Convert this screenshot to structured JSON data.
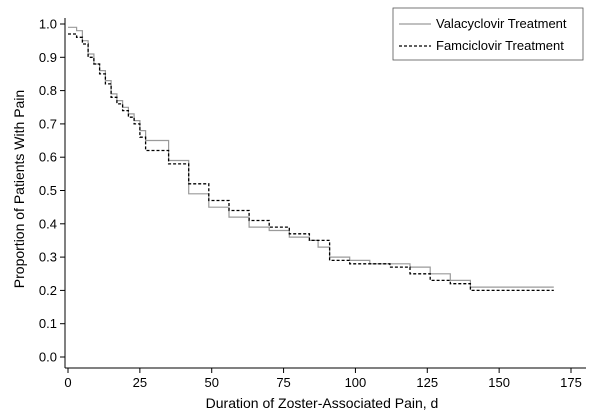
{
  "chart_data": {
    "type": "line",
    "title": "",
    "xlabel": "Duration of Zoster-Associated Pain, d",
    "ylabel": "Proportion of Patients With Pain",
    "xlim": [
      0,
      175
    ],
    "ylim": [
      0,
      1.0
    ],
    "x_ticks": [
      "0",
      "25",
      "50",
      "75",
      "100",
      "125",
      "150",
      "175"
    ],
    "y_ticks": [
      "0.0",
      "0.1",
      "0.2",
      "0.3",
      "0.4",
      "0.5",
      "0.6",
      "0.7",
      "0.8",
      "0.9",
      "1.0"
    ],
    "grid": false,
    "legend_position": "top-right",
    "series": [
      {
        "name": "Valacyclovir Treatment",
        "color": "#9a9a9a",
        "style": "solid",
        "step": true,
        "points": [
          [
            0,
            0.99
          ],
          [
            3,
            0.98
          ],
          [
            5,
            0.95
          ],
          [
            7,
            0.91
          ],
          [
            9,
            0.88
          ],
          [
            11,
            0.86
          ],
          [
            13,
            0.83
          ],
          [
            15,
            0.79
          ],
          [
            17,
            0.77
          ],
          [
            19,
            0.75
          ],
          [
            21,
            0.73
          ],
          [
            23,
            0.71
          ],
          [
            25,
            0.68
          ],
          [
            27,
            0.65
          ],
          [
            35,
            0.59
          ],
          [
            42,
            0.49
          ],
          [
            49,
            0.45
          ],
          [
            56,
            0.42
          ],
          [
            63,
            0.39
          ],
          [
            70,
            0.38
          ],
          [
            77,
            0.36
          ],
          [
            84,
            0.35
          ],
          [
            87,
            0.33
          ],
          [
            91,
            0.3
          ],
          [
            98,
            0.29
          ],
          [
            105,
            0.28
          ],
          [
            112,
            0.28
          ],
          [
            119,
            0.27
          ],
          [
            126,
            0.25
          ],
          [
            133,
            0.23
          ],
          [
            140,
            0.21
          ],
          [
            169,
            0.21
          ]
        ]
      },
      {
        "name": "Famciclovir Treatment",
        "color": "#000000",
        "style": "dashed",
        "step": true,
        "points": [
          [
            0,
            0.97
          ],
          [
            3,
            0.96
          ],
          [
            5,
            0.94
          ],
          [
            7,
            0.9
          ],
          [
            9,
            0.88
          ],
          [
            11,
            0.85
          ],
          [
            13,
            0.82
          ],
          [
            15,
            0.78
          ],
          [
            17,
            0.76
          ],
          [
            19,
            0.74
          ],
          [
            21,
            0.72
          ],
          [
            23,
            0.7
          ],
          [
            25,
            0.66
          ],
          [
            27,
            0.62
          ],
          [
            35,
            0.58
          ],
          [
            42,
            0.52
          ],
          [
            49,
            0.47
          ],
          [
            56,
            0.44
          ],
          [
            63,
            0.41
          ],
          [
            70,
            0.39
          ],
          [
            77,
            0.37
          ],
          [
            84,
            0.35
          ],
          [
            91,
            0.29
          ],
          [
            98,
            0.28
          ],
          [
            105,
            0.28
          ],
          [
            112,
            0.27
          ],
          [
            119,
            0.25
          ],
          [
            126,
            0.23
          ],
          [
            133,
            0.22
          ],
          [
            140,
            0.2
          ],
          [
            169,
            0.2
          ]
        ]
      }
    ]
  }
}
